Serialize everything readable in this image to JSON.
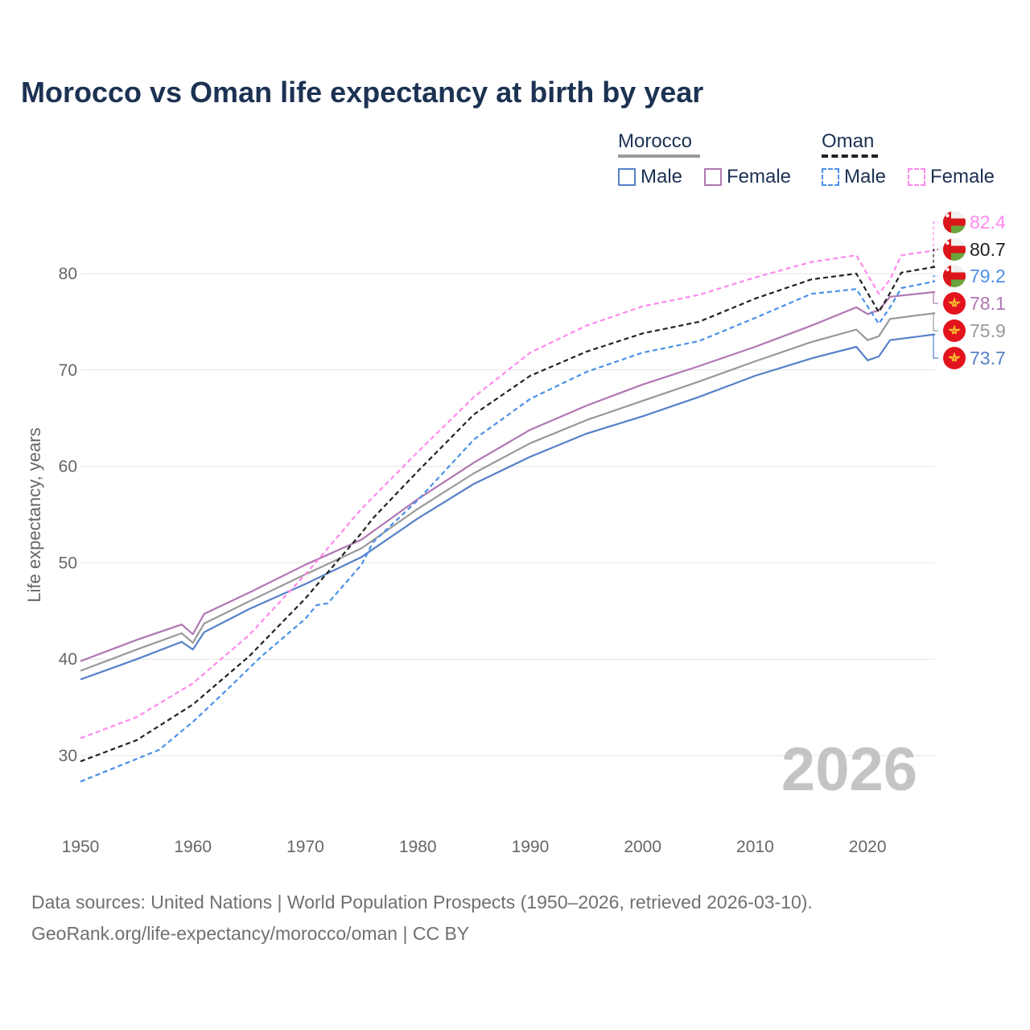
{
  "title": "Morocco vs Oman life expectancy at birth by year",
  "legend": {
    "morocco": {
      "title": "Morocco",
      "male": "Male",
      "female": "Female"
    },
    "oman": {
      "title": "Oman",
      "male": "Male",
      "female": "Female"
    }
  },
  "year_label": "2026",
  "footer": {
    "line1": "Data sources: United Nations | World Population Prospects (1950–2026, retrieved 2026-03-10).",
    "line2": "GeoRank.org/life-expectancy/morocco/oman | CC BY"
  },
  "colors": {
    "morocco_total": "#999999",
    "morocco_male": "#5580c8",
    "morocco_female": "#b077b3",
    "oman_total": "#222222",
    "oman_male": "#4a90e8",
    "oman_female": "#ff88ee",
    "axis_text": "#666666",
    "title": "#1c3253"
  },
  "chart_data": {
    "type": "line",
    "title": "Morocco vs Oman life expectancy at birth by year",
    "xlabel": "",
    "ylabel": "Life expectancy, years",
    "xlim": [
      1950,
      2026
    ],
    "ylim": [
      25,
      85
    ],
    "x_ticks": [
      "1950",
      "1960",
      "1970",
      "1980",
      "1990",
      "2000",
      "2010",
      "2020"
    ],
    "y_ticks": [
      "30",
      "40",
      "50",
      "60",
      "70",
      "80"
    ],
    "series": [
      {
        "name": "Morocco Male",
        "country": "Morocco",
        "sex": "Male",
        "dashed": false,
        "color_key": "morocco_male",
        "end_value": "73.7",
        "points": [
          [
            1950,
            37.9
          ],
          [
            1955,
            40.0
          ],
          [
            1959,
            41.8
          ],
          [
            1960,
            41.0
          ],
          [
            1961,
            42.8
          ],
          [
            1965,
            45.2
          ],
          [
            1970,
            47.8
          ],
          [
            1975,
            50.6
          ],
          [
            1980,
            54.6
          ],
          [
            1985,
            58.2
          ],
          [
            1990,
            61.0
          ],
          [
            1995,
            63.4
          ],
          [
            2000,
            65.2
          ],
          [
            2005,
            67.2
          ],
          [
            2010,
            69.4
          ],
          [
            2015,
            71.2
          ],
          [
            2019,
            72.4
          ],
          [
            2020,
            71.0
          ],
          [
            2021,
            71.4
          ],
          [
            2022,
            73.1
          ],
          [
            2026,
            73.7
          ]
        ]
      },
      {
        "name": "Morocco Female",
        "country": "Morocco",
        "sex": "Female",
        "dashed": false,
        "color_key": "morocco_female",
        "end_value": "78.1",
        "points": [
          [
            1950,
            39.8
          ],
          [
            1955,
            42.0
          ],
          [
            1959,
            43.6
          ],
          [
            1960,
            42.6
          ],
          [
            1961,
            44.7
          ],
          [
            1965,
            46.9
          ],
          [
            1970,
            49.8
          ],
          [
            1975,
            52.4
          ],
          [
            1980,
            56.6
          ],
          [
            1985,
            60.4
          ],
          [
            1990,
            63.8
          ],
          [
            1995,
            66.3
          ],
          [
            2000,
            68.5
          ],
          [
            2005,
            70.4
          ],
          [
            2010,
            72.4
          ],
          [
            2015,
            74.6
          ],
          [
            2019,
            76.5
          ],
          [
            2020,
            75.8
          ],
          [
            2021,
            76.2
          ],
          [
            2022,
            77.6
          ],
          [
            2026,
            78.1
          ]
        ]
      },
      {
        "name": "Morocco Total",
        "country": "Morocco",
        "sex": "Total",
        "dashed": false,
        "color_key": "morocco_total",
        "end_value": "75.9",
        "points": [
          [
            1950,
            38.8
          ],
          [
            1955,
            41.0
          ],
          [
            1959,
            42.7
          ],
          [
            1960,
            41.7
          ],
          [
            1961,
            43.7
          ],
          [
            1965,
            46.0
          ],
          [
            1970,
            48.8
          ],
          [
            1975,
            51.5
          ],
          [
            1980,
            55.6
          ],
          [
            1985,
            59.3
          ],
          [
            1990,
            62.4
          ],
          [
            1995,
            64.8
          ],
          [
            2000,
            66.8
          ],
          [
            2005,
            68.8
          ],
          [
            2010,
            70.9
          ],
          [
            2015,
            72.9
          ],
          [
            2019,
            74.2
          ],
          [
            2020,
            73.1
          ],
          [
            2021,
            73.5
          ],
          [
            2022,
            75.3
          ],
          [
            2026,
            75.9
          ]
        ]
      },
      {
        "name": "Oman Male",
        "country": "Oman",
        "sex": "Male",
        "dashed": true,
        "color_key": "oman_male",
        "end_value": "79.2",
        "points": [
          [
            1950,
            27.3
          ],
          [
            1957,
            30.6
          ],
          [
            1960,
            33.5
          ],
          [
            1963,
            36.8
          ],
          [
            1966,
            40.2
          ],
          [
            1970,
            44.2
          ],
          [
            1971,
            45.6
          ],
          [
            1972,
            45.8
          ],
          [
            1975,
            49.8
          ],
          [
            1976,
            52.1
          ],
          [
            1980,
            56.5
          ],
          [
            1985,
            62.8
          ],
          [
            1990,
            67.0
          ],
          [
            1995,
            69.8
          ],
          [
            2000,
            71.8
          ],
          [
            2005,
            73.0
          ],
          [
            2010,
            75.4
          ],
          [
            2015,
            77.9
          ],
          [
            2019,
            78.4
          ],
          [
            2021,
            74.8
          ],
          [
            2022,
            76.5
          ],
          [
            2023,
            78.5
          ],
          [
            2026,
            79.2
          ]
        ]
      },
      {
        "name": "Oman Female",
        "country": "Oman",
        "sex": "Female",
        "dashed": true,
        "color_key": "oman_female",
        "end_value": "82.4",
        "points": [
          [
            1950,
            31.8
          ],
          [
            1955,
            34.0
          ],
          [
            1960,
            37.5
          ],
          [
            1965,
            42.5
          ],
          [
            1970,
            48.8
          ],
          [
            1975,
            55.6
          ],
          [
            1980,
            61.5
          ],
          [
            1985,
            67.2
          ],
          [
            1990,
            71.8
          ],
          [
            1995,
            74.6
          ],
          [
            2000,
            76.6
          ],
          [
            2005,
            77.8
          ],
          [
            2010,
            79.6
          ],
          [
            2015,
            81.2
          ],
          [
            2019,
            81.9
          ],
          [
            2021,
            77.9
          ],
          [
            2022,
            79.4
          ],
          [
            2023,
            81.9
          ],
          [
            2026,
            82.4
          ]
        ]
      },
      {
        "name": "Oman Total",
        "country": "Oman",
        "sex": "Total",
        "dashed": true,
        "color_key": "oman_total",
        "end_value": "80.7",
        "points": [
          [
            1950,
            29.4
          ],
          [
            1955,
            31.6
          ],
          [
            1960,
            35.3
          ],
          [
            1965,
            40.3
          ],
          [
            1970,
            46.3
          ],
          [
            1975,
            53.1
          ],
          [
            1976,
            54.6
          ],
          [
            1980,
            59.5
          ],
          [
            1985,
            65.4
          ],
          [
            1990,
            69.4
          ],
          [
            1995,
            71.9
          ],
          [
            2000,
            73.8
          ],
          [
            2005,
            75.0
          ],
          [
            2010,
            77.4
          ],
          [
            2015,
            79.4
          ],
          [
            2019,
            80.0
          ],
          [
            2021,
            76.0
          ],
          [
            2022,
            78.0
          ],
          [
            2023,
            80.1
          ],
          [
            2026,
            80.7
          ]
        ]
      }
    ],
    "end_labels": [
      {
        "value": "82.4",
        "series": "Oman Female",
        "flag": "oman-flag",
        "color_key": "oman_female"
      },
      {
        "value": "80.7",
        "series": "Oman Total",
        "flag": "oman-flag",
        "color_key": "oman_total"
      },
      {
        "value": "79.2",
        "series": "Oman Male",
        "flag": "oman-flag",
        "color_key": "oman_male"
      },
      {
        "value": "78.1",
        "series": "Morocco Female",
        "flag": "morocco-flag",
        "color_key": "morocco_female"
      },
      {
        "value": "75.9",
        "series": "Morocco Total",
        "flag": "morocco-flag",
        "color_key": "morocco_total"
      },
      {
        "value": "73.7",
        "series": "Morocco Male",
        "flag": "morocco-flag",
        "color_key": "morocco_male"
      }
    ]
  }
}
